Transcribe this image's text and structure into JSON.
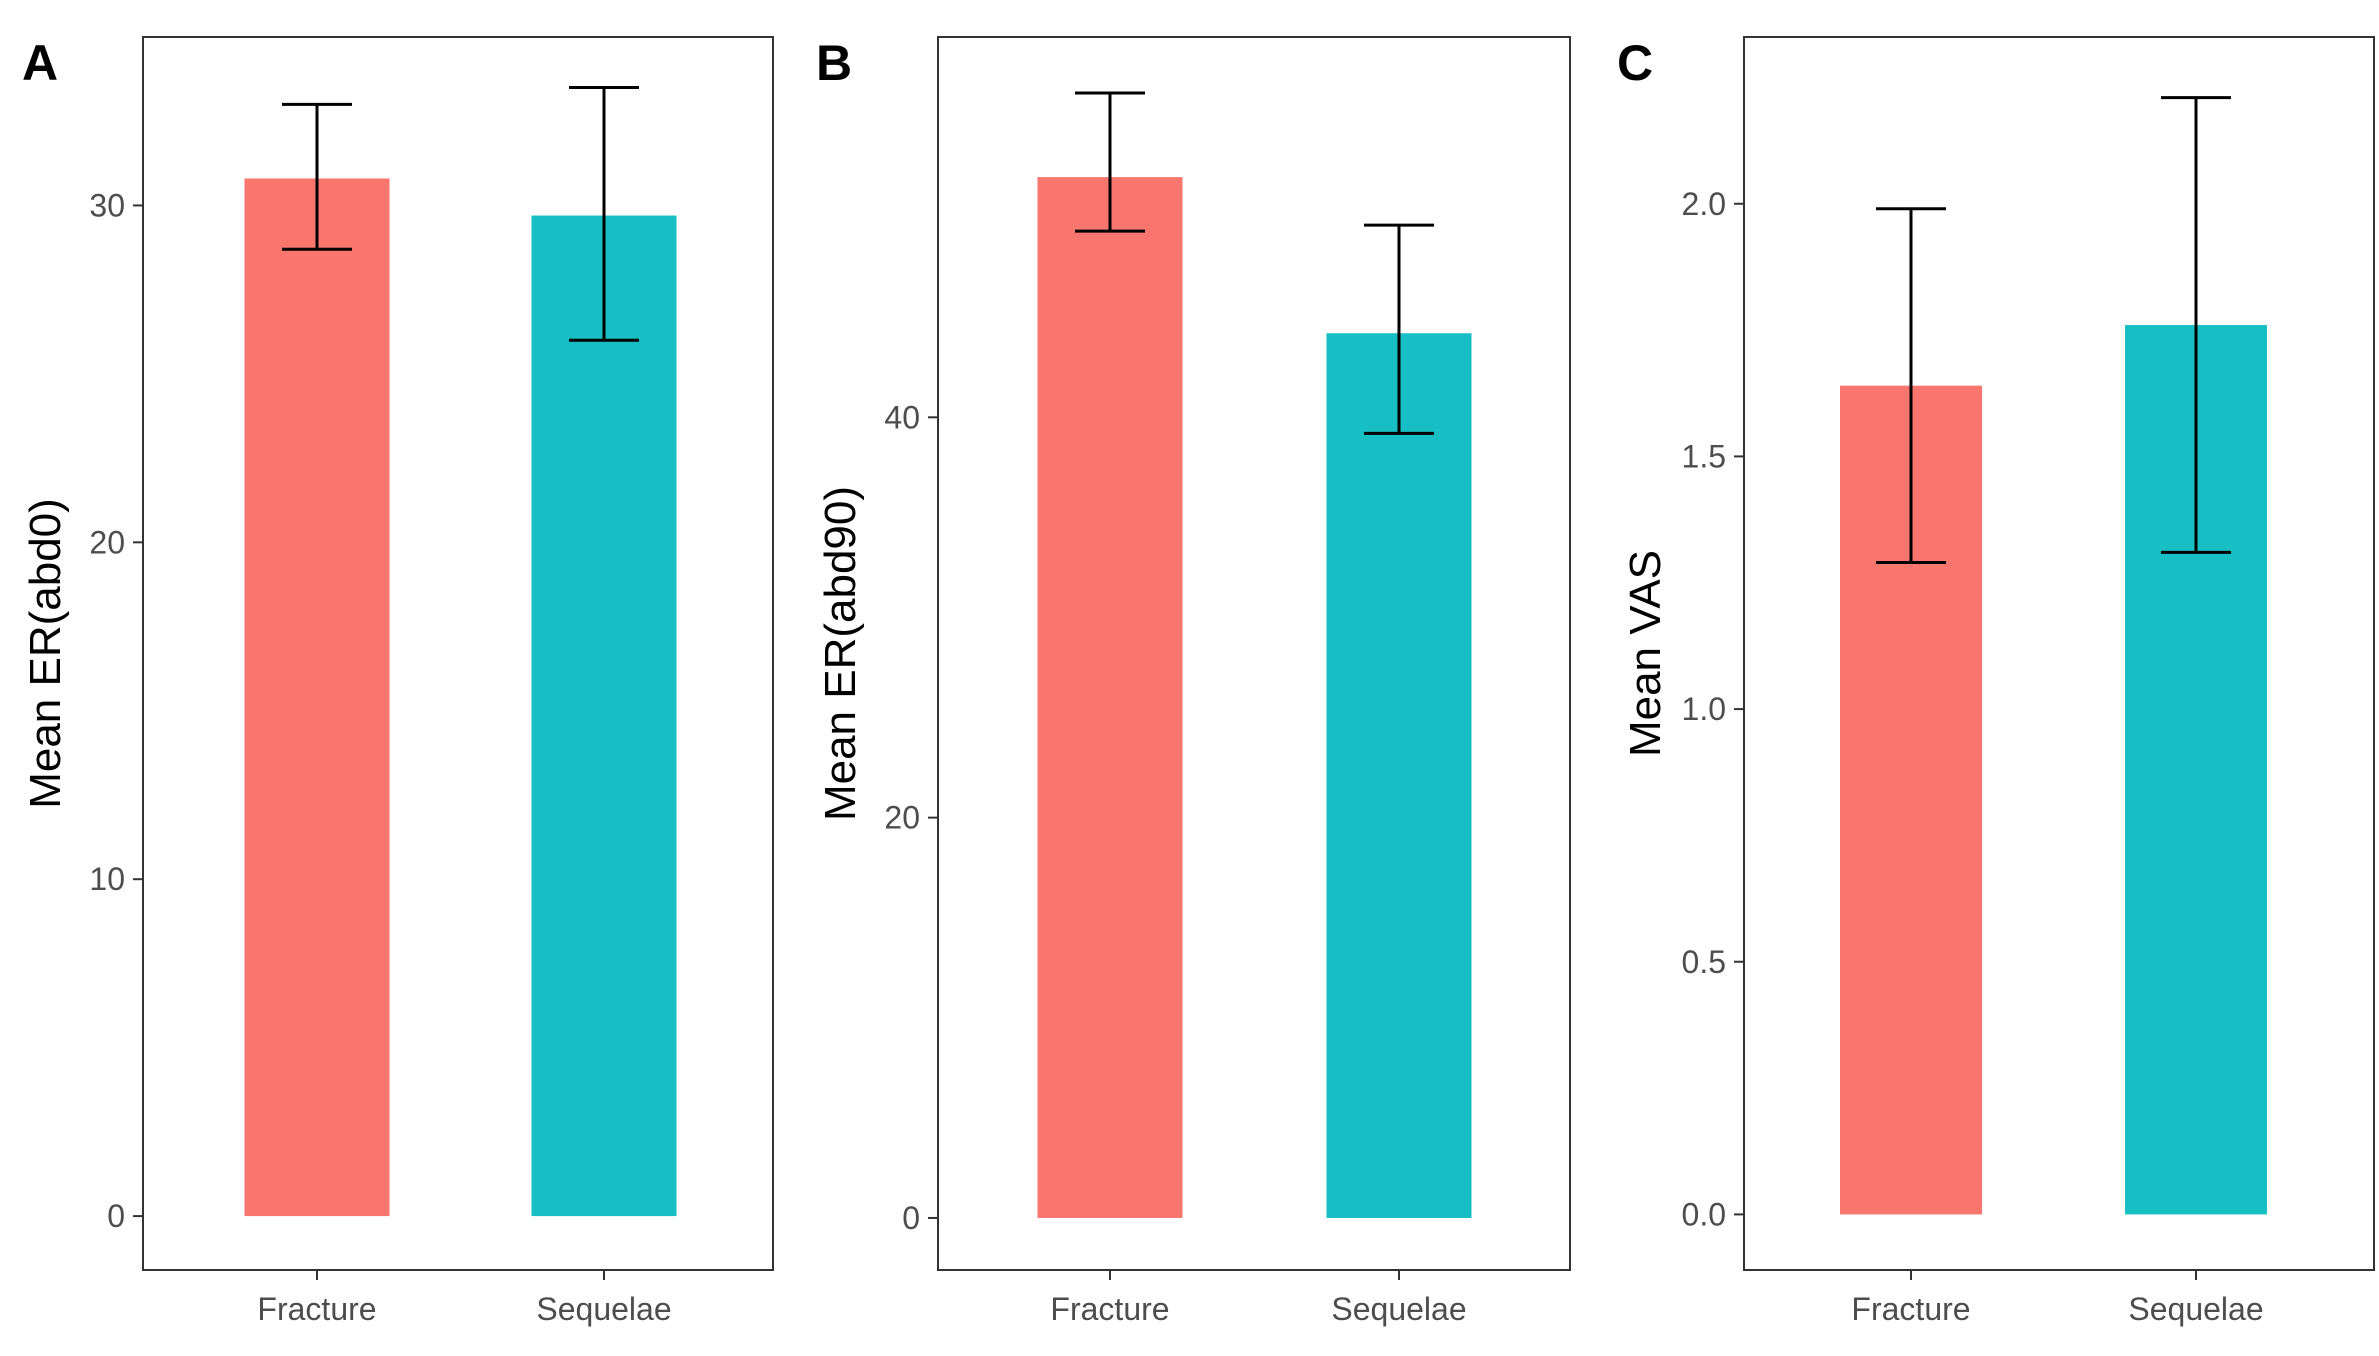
{
  "chart_data": [
    {
      "type": "bar",
      "panel_label": "A",
      "categories": [
        "Fracture",
        "Sequelae"
      ],
      "values": [
        30.8,
        29.7
      ],
      "error_low": [
        28.7,
        26.0
      ],
      "error_high": [
        33.0,
        33.5
      ],
      "ylabel": "Mean ER(abd0)",
      "ylim": [
        -1.6,
        35.0
      ],
      "yticks": [
        0,
        10,
        20,
        30
      ],
      "ytick_labels": [
        "0",
        "10",
        "20",
        "30"
      ],
      "grid": false,
      "bar_colors": [
        "#F8766D",
        "#17BEC4"
      ]
    },
    {
      "type": "bar",
      "panel_label": "B",
      "categories": [
        "Fracture",
        "Sequelae"
      ],
      "values": [
        52.0,
        44.2
      ],
      "error_low": [
        49.3,
        39.2
      ],
      "error_high": [
        56.2,
        49.6
      ],
      "ylabel": "Mean ER(abd90)",
      "ylim": [
        -2.6,
        59.0
      ],
      "yticks": [
        0,
        20,
        40
      ],
      "ytick_labels": [
        "0",
        "20",
        "40"
      ],
      "grid": false,
      "bar_colors": [
        "#F8766D",
        "#17BEC4"
      ]
    },
    {
      "type": "bar",
      "panel_label": "C",
      "categories": [
        "Fracture",
        "Sequelae"
      ],
      "values": [
        1.64,
        1.76
      ],
      "error_low": [
        1.29,
        1.31
      ],
      "error_high": [
        1.99,
        2.21
      ],
      "ylabel": "Mean VAS",
      "ylim": [
        -0.11,
        2.33
      ],
      "yticks": [
        0.0,
        0.5,
        1.0,
        1.5,
        2.0
      ],
      "ytick_labels": [
        "0.0",
        "0.5",
        "1.0",
        "1.5",
        "2.0"
      ],
      "grid": false,
      "bar_colors": [
        "#F8766D",
        "#17BEC4"
      ]
    }
  ]
}
